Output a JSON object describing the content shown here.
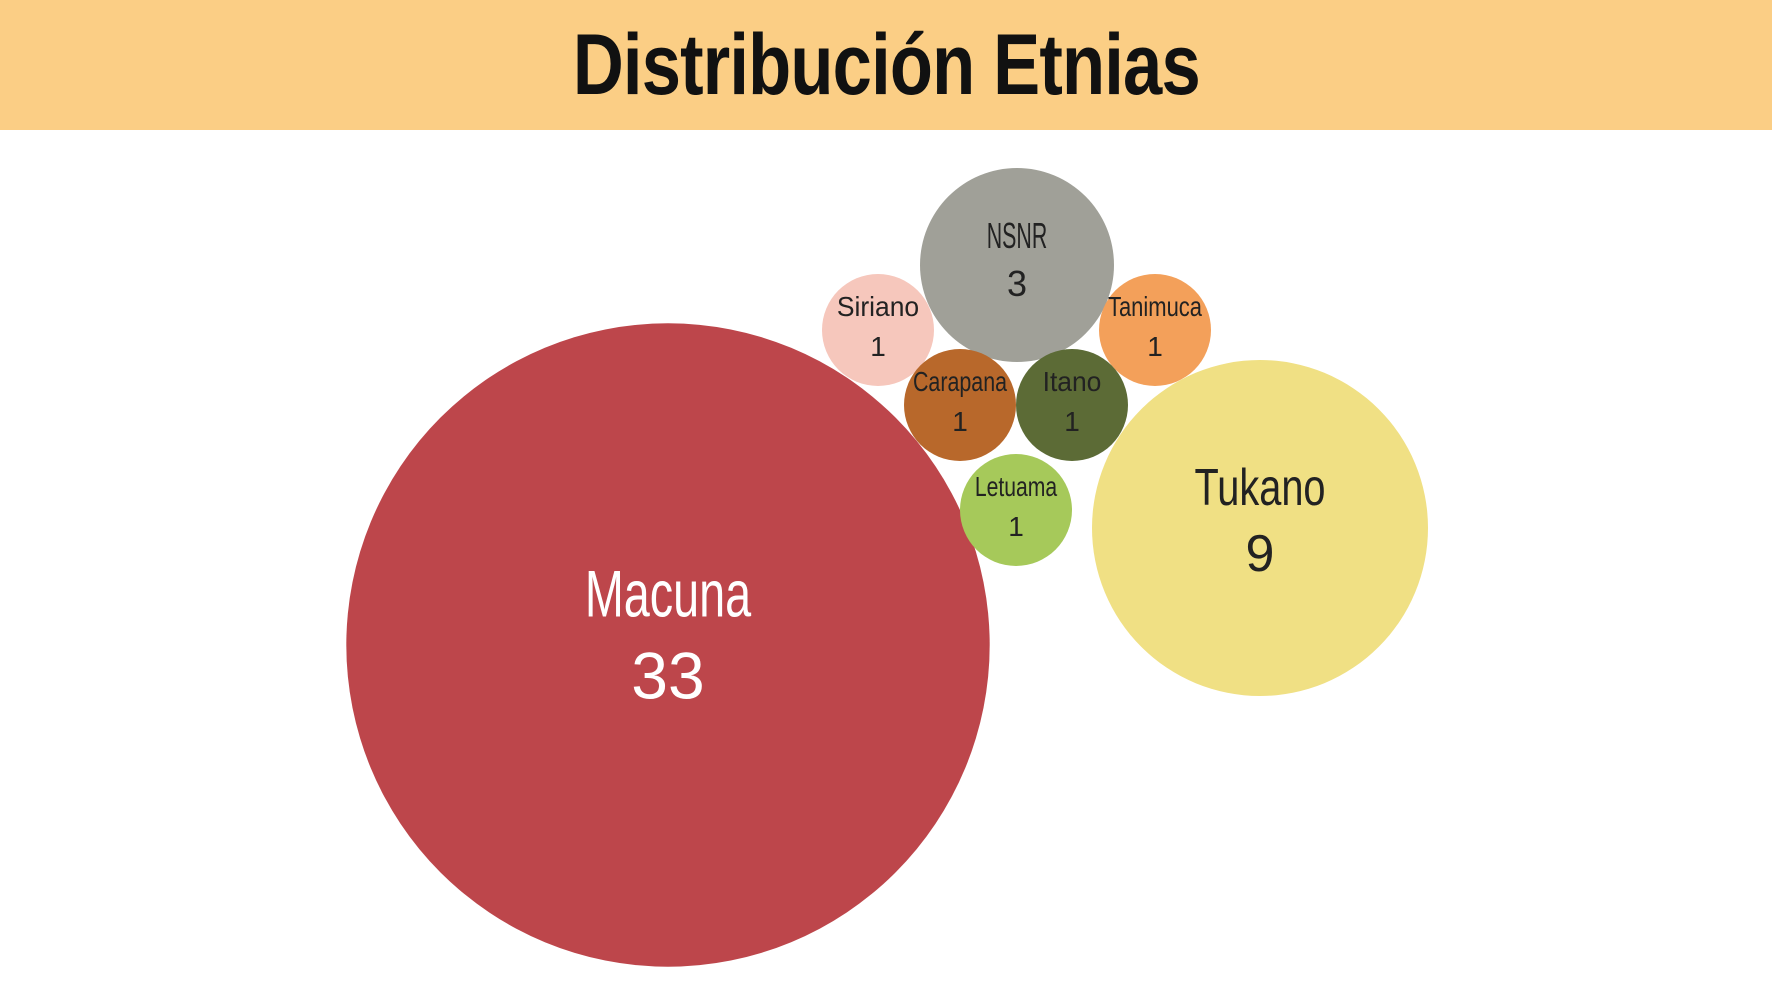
{
  "title": "Distribución Etnias",
  "colors": {
    "banner": "#fbce85",
    "background": "#ffffff"
  },
  "chart_data": {
    "type": "bubble",
    "title": "Distribución Etnias",
    "value_unit": "",
    "bubbles": [
      {
        "label": "Macuna",
        "value": 33,
        "color": "#bd464b",
        "text_color": "#ffffff"
      },
      {
        "label": "Tukano",
        "value": 9,
        "color": "#f0e084",
        "text_color": "#222222"
      },
      {
        "label": "NSNR",
        "value": 3,
        "color": "#a0a098",
        "text_color": "#222222"
      },
      {
        "label": "Siriano",
        "value": 1,
        "color": "#f6c7bc",
        "text_color": "#222222"
      },
      {
        "label": "Tanimuca",
        "value": 1,
        "color": "#f3a05a",
        "text_color": "#222222"
      },
      {
        "label": "Carapana",
        "value": 1,
        "color": "#b8682b",
        "text_color": "#222222"
      },
      {
        "label": "Itano",
        "value": 1,
        "color": "#5c6b36",
        "text_color": "#222222"
      },
      {
        "label": "Letuama",
        "value": 1,
        "color": "#a6c95a",
        "text_color": "#222222"
      }
    ]
  }
}
